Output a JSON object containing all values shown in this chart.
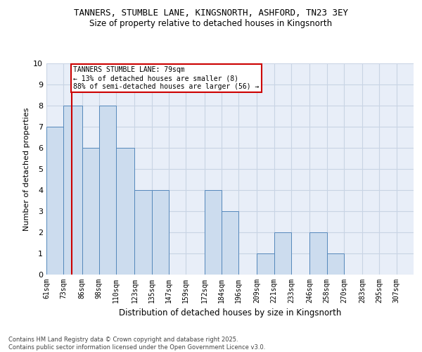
{
  "title_line1": "TANNERS, STUMBLE LANE, KINGSNORTH, ASHFORD, TN23 3EY",
  "title_line2": "Size of property relative to detached houses in Kingsnorth",
  "xlabel": "Distribution of detached houses by size in Kingsnorth",
  "ylabel": "Number of detached properties",
  "bin_labels": [
    "61sqm",
    "73sqm",
    "86sqm",
    "98sqm",
    "110sqm",
    "123sqm",
    "135sqm",
    "147sqm",
    "159sqm",
    "172sqm",
    "184sqm",
    "196sqm",
    "209sqm",
    "221sqm",
    "233sqm",
    "246sqm",
    "258sqm",
    "270sqm",
    "283sqm",
    "295sqm",
    "307sqm"
  ],
  "bar_values": [
    7,
    8,
    6,
    8,
    6,
    4,
    4,
    0,
    0,
    4,
    3,
    0,
    1,
    2,
    0,
    2,
    1,
    0,
    0,
    0
  ],
  "bar_color": "#ccdcee",
  "bar_edge_color": "#5588bb",
  "grid_color": "#c8d4e4",
  "bg_color": "#e8eef8",
  "annotation_text": "TANNERS STUMBLE LANE: 79sqm\n← 13% of detached houses are smaller (8)\n88% of semi-detached houses are larger (56) →",
  "ylim": [
    0,
    10
  ],
  "yticks": [
    0,
    1,
    2,
    3,
    4,
    5,
    6,
    7,
    8,
    9,
    10
  ],
  "footnote": "Contains HM Land Registry data © Crown copyright and database right 2025.\nContains public sector information licensed under the Open Government Licence v3.0.",
  "property_size_sqm": 79,
  "bin_edges": [
    61,
    73,
    86,
    98,
    110,
    123,
    135,
    147,
    159,
    172,
    184,
    196,
    209,
    221,
    233,
    246,
    258,
    270,
    283,
    295,
    307
  ]
}
